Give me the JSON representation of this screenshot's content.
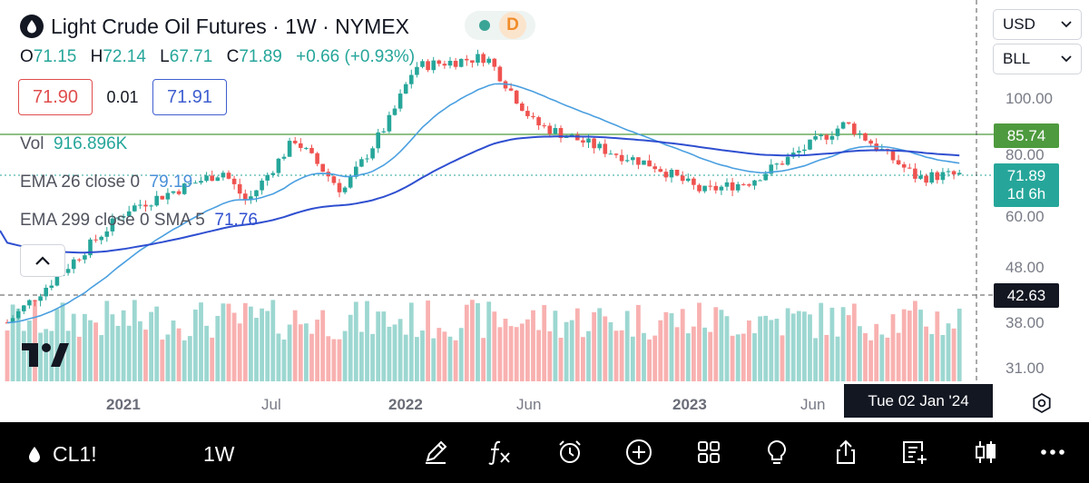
{
  "header": {
    "symbol_name": "Light Crude Oil Futures",
    "interval": "1W",
    "exchange": "NYMEX",
    "title_full": "Light Crude Oil Futures · 1W · NYMEX",
    "status_letter": "D"
  },
  "ohlc": {
    "open_label": "O",
    "open": "71.15",
    "high_label": "H",
    "high": "72.14",
    "low_label": "L",
    "low": "67.71",
    "close_label": "C",
    "close": "71.89",
    "change": "+0.66 (+0.93%)"
  },
  "trade": {
    "sell": "71.90",
    "spread": "0.01",
    "buy": "71.91"
  },
  "indicators": {
    "volume_label": "Vol",
    "volume_value": "916.896K",
    "ema1_label": "EMA 26 close 0",
    "ema1_value": "79.19",
    "ema2_label": "EMA 299 close 0 SMA 5",
    "ema2_value": "71.76"
  },
  "right_panel": {
    "currency": "USD",
    "unit": "BLL"
  },
  "price_axis": {
    "labels": [
      "100.00",
      "80.00",
      "60.00",
      "48.00",
      "38.00",
      "31.00"
    ],
    "green_line_price": "85.74",
    "last_price": "71.89",
    "countdown": "1d 6h",
    "crosshair_price": "42.63"
  },
  "time_axis": {
    "labels": [
      {
        "text": "2021",
        "bold": true
      },
      {
        "text": "Jul",
        "bold": false
      },
      {
        "text": "2022",
        "bold": true
      },
      {
        "text": "Jun",
        "bold": false
      },
      {
        "text": "2023",
        "bold": true
      },
      {
        "text": "Jun",
        "bold": false
      }
    ],
    "crosshair_date": "Tue 02 Jan '24"
  },
  "colors": {
    "up": "#26a69a",
    "down": "#ef5350",
    "ema26": "#4a9fe0",
    "ema299": "#2f4fd0",
    "green_line": "#4e9a3e",
    "crosshair_tag": "#131722"
  },
  "bottom_bar": {
    "symbol": "CL1!",
    "interval": "1W",
    "icons": [
      "pencil-icon",
      "function-icon",
      "alarm-clock-icon",
      "add-circle-icon",
      "grid-icon",
      "lightbulb-icon",
      "share-icon",
      "add-list-icon",
      "candles-icon",
      "more-icon"
    ]
  },
  "chart_data": {
    "type": "candlestick",
    "title": "Light Crude Oil Futures · 1W · NYMEX",
    "x_range": [
      "2020-10",
      "2024-01"
    ],
    "y_range": [
      31,
      110
    ],
    "y_scale": "log",
    "keypoints": [
      {
        "date": "2020-10",
        "price": 38
      },
      {
        "date": "2020-12",
        "price": 46
      },
      {
        "date": "2021-03",
        "price": 62
      },
      {
        "date": "2021-07",
        "price": 73
      },
      {
        "date": "2021-08",
        "price": 64
      },
      {
        "date": "2021-10",
        "price": 84
      },
      {
        "date": "2021-12",
        "price": 67
      },
      {
        "date": "2022-02",
        "price": 92
      },
      {
        "date": "2022-03",
        "price": 115
      },
      {
        "date": "2022-06",
        "price": 120
      },
      {
        "date": "2022-08",
        "price": 90
      },
      {
        "date": "2022-11",
        "price": 80
      },
      {
        "date": "2023-01",
        "price": 75
      },
      {
        "date": "2023-03",
        "price": 67
      },
      {
        "date": "2023-05",
        "price": 70
      },
      {
        "date": "2023-09",
        "price": 90
      },
      {
        "date": "2023-12",
        "price": 71
      },
      {
        "date": "2024-01",
        "price": 71.89
      }
    ],
    "ema26_last": 79.19,
    "ema299_last": 71.76
  }
}
